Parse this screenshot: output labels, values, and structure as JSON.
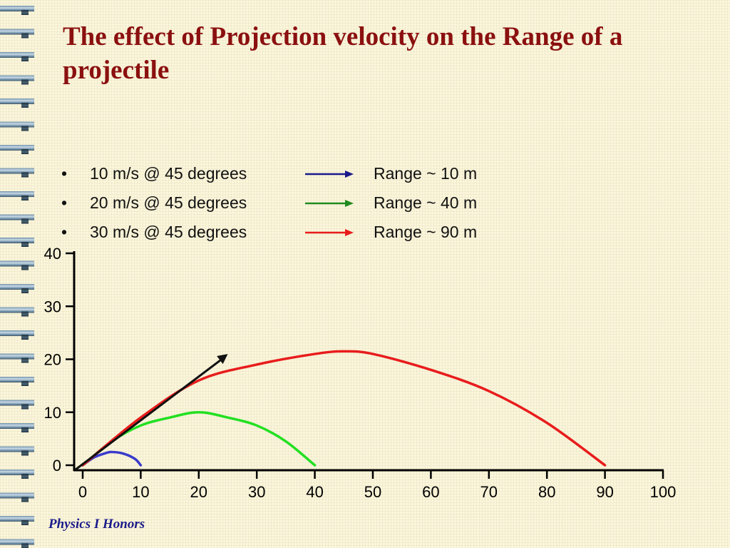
{
  "slide": {
    "title": "The effect of Projection velocity on the Range of a projectile",
    "footer": "Physics I Honors",
    "bullets": [
      {
        "marker": "•",
        "label": "10 m/s @ 45 degrees",
        "range": "Range ~ 10 m",
        "color": "#1a1a8a"
      },
      {
        "marker": "•",
        "label": "20 m/s @ 45 degrees",
        "range": "Range ~ 40 m",
        "color": "#1f8a1f"
      },
      {
        "marker": "•",
        "label": "30 m/s @ 45 degrees",
        "range": "Range ~ 90 m",
        "color": "#e81c1c"
      }
    ]
  },
  "chart_data": {
    "type": "line",
    "title": "",
    "xlabel": "",
    "ylabel": "",
    "xlim": [
      0,
      100
    ],
    "ylim": [
      0,
      40
    ],
    "xticks": [
      0,
      10,
      20,
      30,
      40,
      50,
      60,
      70,
      80,
      90,
      100
    ],
    "yticks": [
      0,
      10,
      20,
      30,
      40
    ],
    "grid": false,
    "series": [
      {
        "color": "#3a3acc",
        "x": [
          0,
          2,
          4,
          5,
          7,
          9,
          10
        ],
        "y": [
          0,
          1.5,
          2.3,
          2.5,
          2.2,
          1.2,
          0
        ]
      },
      {
        "color": "#22e022",
        "x": [
          0,
          5,
          10,
          15,
          20,
          25,
          30,
          35,
          40
        ],
        "y": [
          0,
          4.5,
          7.5,
          9,
          10,
          9,
          7.5,
          4.5,
          0
        ]
      },
      {
        "color": "#e81c1c",
        "x": [
          0,
          10,
          20,
          30,
          40,
          45,
          50,
          60,
          70,
          80,
          90
        ],
        "y": [
          0,
          9,
          16,
          19,
          21,
          21.5,
          21,
          18,
          14,
          8,
          0
        ]
      }
    ],
    "annotations": [
      {
        "type": "arrow",
        "color": "#111111",
        "from": [
          0,
          0
        ],
        "to": [
          25,
          21
        ]
      }
    ]
  }
}
